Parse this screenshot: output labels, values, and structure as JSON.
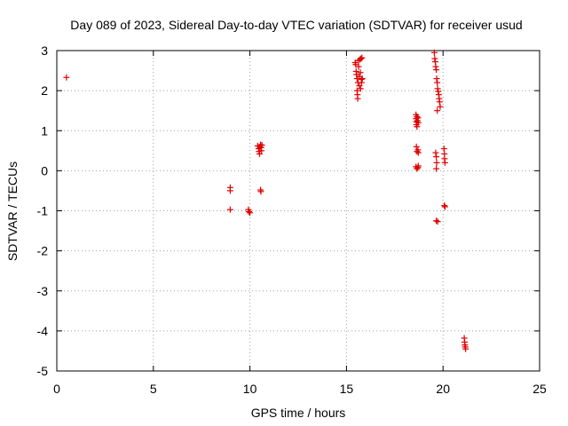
{
  "chart_data": {
    "type": "scatter",
    "title": "Day 089 of 2023, Sidereal Day-to-day VTEC variation (SDTVAR) for receiver usud",
    "xlabel": "GPS time / hours",
    "ylabel": "SDTVAR / TECUs",
    "xlim": [
      0,
      25
    ],
    "ylim": [
      -5,
      3
    ],
    "xticks": [
      0,
      5,
      10,
      15,
      20,
      25
    ],
    "yticks": [
      -5,
      -4,
      -3,
      -2,
      -1,
      0,
      1,
      2,
      3
    ],
    "xtick_labels": [
      "0",
      "5",
      "10",
      "15",
      "20",
      "25"
    ],
    "ytick_labels": [
      "-5",
      "-4",
      "-3",
      "-2",
      "-1",
      "0",
      "1",
      "2",
      "3"
    ],
    "grid": true,
    "marker": "+",
    "color": "#e00000",
    "series": [
      {
        "name": "SDTVAR",
        "points": [
          [
            0.5,
            2.33
          ],
          [
            8.98,
            -0.42
          ],
          [
            8.98,
            -0.5
          ],
          [
            8.98,
            -0.97
          ],
          [
            9.92,
            -0.97
          ],
          [
            9.95,
            -1.02
          ],
          [
            10.0,
            -1.05
          ],
          [
            10.4,
            0.62
          ],
          [
            10.45,
            0.55
          ],
          [
            10.47,
            0.48
          ],
          [
            10.5,
            0.42
          ],
          [
            10.52,
            0.6
          ],
          [
            10.55,
            0.65
          ],
          [
            10.58,
            0.58
          ],
          [
            10.6,
            0.5
          ],
          [
            10.62,
            0.64
          ],
          [
            10.55,
            -0.48
          ],
          [
            10.57,
            -0.52
          ],
          [
            15.45,
            2.7
          ],
          [
            15.48,
            2.65
          ],
          [
            15.5,
            2.48
          ],
          [
            15.52,
            2.4
          ],
          [
            15.55,
            2.3
          ],
          [
            15.55,
            2.0
          ],
          [
            15.57,
            1.9
          ],
          [
            15.58,
            1.8
          ],
          [
            15.6,
            2.2
          ],
          [
            15.62,
            2.75
          ],
          [
            15.63,
            2.6
          ],
          [
            15.65,
            2.35
          ],
          [
            15.67,
            2.12
          ],
          [
            15.7,
            2.78
          ],
          [
            15.72,
            2.45
          ],
          [
            15.73,
            2.05
          ],
          [
            15.75,
            2.8
          ],
          [
            15.77,
            2.28
          ],
          [
            15.78,
            2.2
          ],
          [
            15.8,
            2.82
          ],
          [
            15.82,
            2.3
          ],
          [
            18.6,
            1.4
          ],
          [
            18.6,
            1.3
          ],
          [
            18.62,
            1.22
          ],
          [
            18.62,
            1.15
          ],
          [
            18.65,
            1.35
          ],
          [
            18.65,
            1.1
          ],
          [
            18.67,
            1.25
          ],
          [
            18.7,
            1.32
          ],
          [
            18.72,
            1.2
          ],
          [
            18.62,
            0.6
          ],
          [
            18.65,
            0.48
          ],
          [
            18.7,
            0.52
          ],
          [
            18.72,
            0.45
          ],
          [
            18.6,
            0.1
          ],
          [
            18.65,
            0.05
          ],
          [
            18.7,
            0.08
          ],
          [
            18.72,
            0.12
          ],
          [
            19.55,
            2.95
          ],
          [
            19.57,
            2.8
          ],
          [
            19.6,
            2.72
          ],
          [
            19.62,
            2.6
          ],
          [
            19.65,
            2.52
          ],
          [
            19.67,
            2.3
          ],
          [
            19.7,
            2.2
          ],
          [
            19.72,
            2.05
          ],
          [
            19.75,
            1.98
          ],
          [
            19.78,
            1.9
          ],
          [
            19.8,
            1.8
          ],
          [
            19.82,
            1.72
          ],
          [
            19.85,
            1.6
          ],
          [
            19.7,
            1.5
          ],
          [
            19.62,
            0.45
          ],
          [
            19.65,
            0.35
          ],
          [
            19.67,
            0.2
          ],
          [
            19.65,
            0.05
          ],
          [
            19.65,
            -1.25
          ],
          [
            19.72,
            -1.27
          ],
          [
            20.05,
            0.55
          ],
          [
            20.07,
            0.42
          ],
          [
            20.08,
            0.3
          ],
          [
            20.1,
            0.2
          ],
          [
            20.07,
            -0.87
          ],
          [
            20.1,
            -0.9
          ],
          [
            21.1,
            -4.18
          ],
          [
            21.12,
            -4.28
          ],
          [
            21.13,
            -4.35
          ],
          [
            21.15,
            -4.4
          ],
          [
            21.17,
            -4.45
          ]
        ]
      }
    ]
  }
}
